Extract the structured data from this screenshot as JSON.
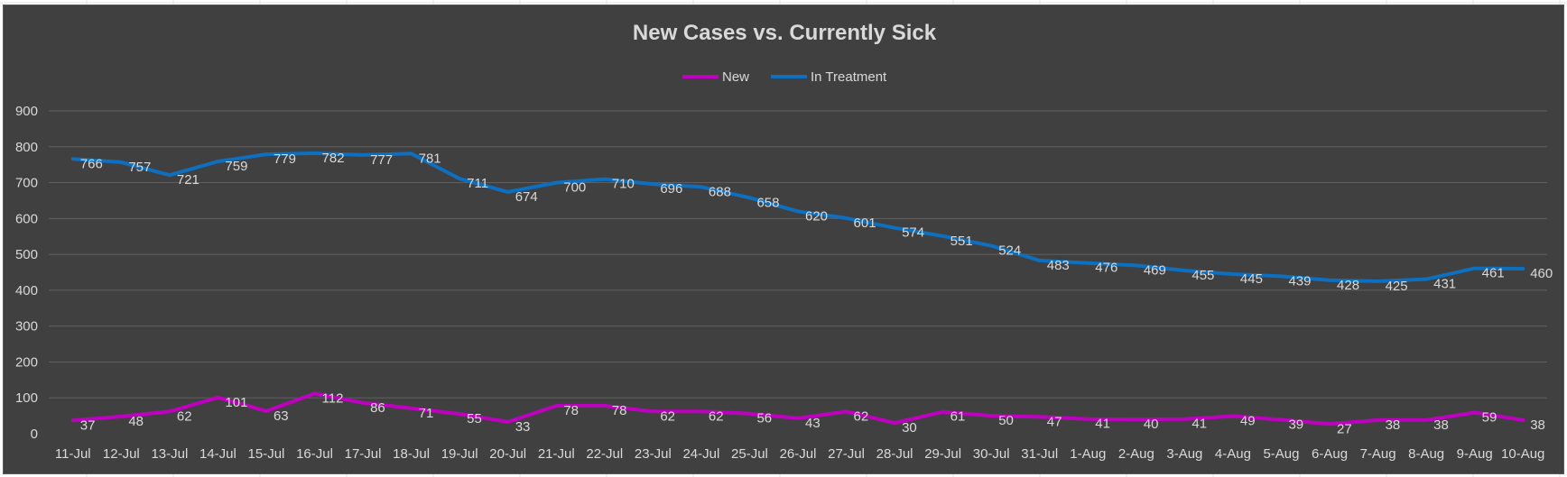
{
  "chart_data": {
    "type": "line",
    "title": "New Cases vs. Currently Sick",
    "xlabel": "",
    "ylabel": "",
    "ylim": [
      0,
      900
    ],
    "yticks": [
      0,
      100,
      200,
      300,
      400,
      500,
      600,
      700,
      800,
      900
    ],
    "grid": true,
    "legend_position": "top",
    "categories": [
      "11-Jul",
      "12-Jul",
      "13-Jul",
      "14-Jul",
      "15-Jul",
      "16-Jul",
      "17-Jul",
      "18-Jul",
      "19-Jul",
      "20-Jul",
      "21-Jul",
      "22-Jul",
      "23-Jul",
      "24-Jul",
      "25-Jul",
      "26-Jul",
      "27-Jul",
      "28-Jul",
      "29-Jul",
      "30-Jul",
      "31-Jul",
      "1-Aug",
      "2-Aug",
      "3-Aug",
      "4-Aug",
      "5-Aug",
      "6-Aug",
      "7-Aug",
      "8-Aug",
      "9-Aug",
      "10-Aug"
    ],
    "series": [
      {
        "name": "New",
        "color": "#c000c0",
        "values": [
          37,
          48,
          62,
          101,
          63,
          112,
          86,
          71,
          55,
          33,
          78,
          78,
          62,
          62,
          56,
          43,
          62,
          30,
          61,
          50,
          47,
          41,
          40,
          41,
          49,
          39,
          27,
          38,
          38,
          59,
          38
        ]
      },
      {
        "name": "In Treatment",
        "color": "#0c6fc0",
        "values": [
          766,
          757,
          721,
          759,
          779,
          782,
          777,
          781,
          711,
          674,
          700,
          710,
          696,
          688,
          658,
          620,
          601,
          574,
          551,
          524,
          483,
          476,
          469,
          455,
          445,
          439,
          428,
          425,
          431,
          461,
          460
        ]
      }
    ]
  },
  "colors": {
    "background": "#404040",
    "text": "#d9d9d9",
    "gridline": "#5f5f5f"
  }
}
